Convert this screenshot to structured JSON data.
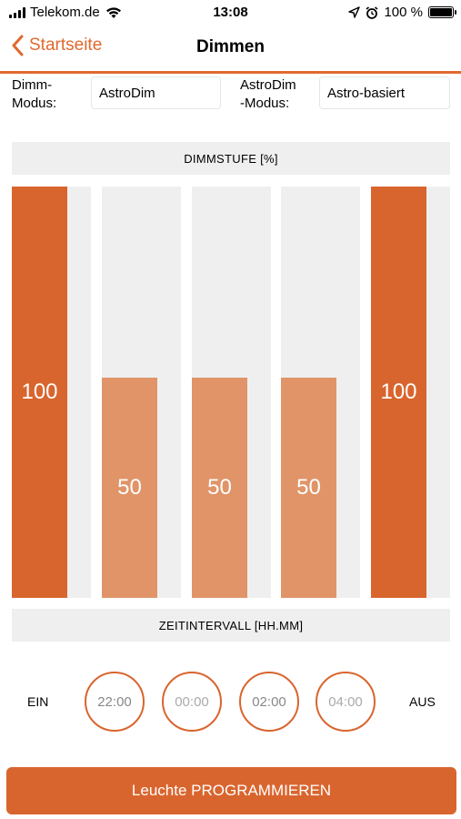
{
  "status_bar": {
    "carrier": "Telekom.de",
    "time": "13:08",
    "battery": "100 %",
    "icons": [
      "signal-icon",
      "wifi-icon",
      "location-icon",
      "alarm-icon",
      "battery-icon"
    ]
  },
  "nav": {
    "back_label": "Startseite",
    "title": "Dimmen"
  },
  "modes": {
    "dimm_label_line1": "Dimm-",
    "dimm_label_line2": "Modus:",
    "dimm_value": "AstroDim",
    "astro_label_line1": "AstroDim",
    "astro_label_line2": "-Modus:",
    "astro_value": "Astro-basiert"
  },
  "dim_section": {
    "header": "DIMMSTUFE [%]",
    "bars": [
      {
        "value": 100,
        "label": "100"
      },
      {
        "value": 50,
        "label": "50"
      },
      {
        "value": 50,
        "label": "50"
      },
      {
        "value": 50,
        "label": "50"
      },
      {
        "value": 100,
        "label": "100"
      }
    ]
  },
  "time_section": {
    "header": "ZEITINTERVALL [HH.MM]",
    "start_label": "EIN",
    "end_label": "AUS",
    "times": [
      {
        "label": "22:00",
        "color": "#888888"
      },
      {
        "label": "00:00",
        "color": "#aaaaaa"
      },
      {
        "label": "02:00",
        "color": "#888888"
      },
      {
        "label": "04:00",
        "color": "#aaaaaa"
      }
    ]
  },
  "program_button": "Leuchte PROGRAMMIEREN",
  "colors": {
    "accent": "#d9652e",
    "bar_full": "#d9652e",
    "bar_half": "#e09468",
    "track": "#efefef"
  }
}
